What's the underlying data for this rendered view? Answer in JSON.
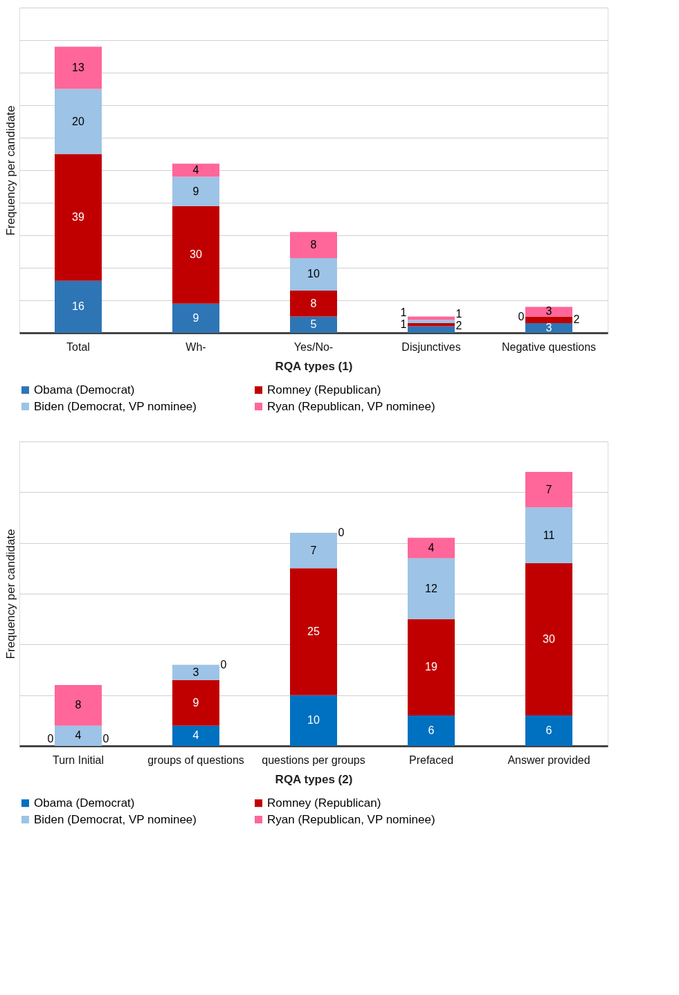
{
  "chart_data": [
    {
      "type": "bar",
      "stacked": true,
      "xlabel": "RQA types (1)",
      "ylabel": "Frequency per candidate",
      "categories": [
        "Total",
        "Wh-",
        "Yes/No-",
        "Disjunctives",
        "Negative questions"
      ],
      "series": [
        {
          "name": "Obama (Democrat)",
          "color": "#2e75b6",
          "values": [
            16,
            9,
            5,
            2,
            3
          ],
          "value_labels": [
            "16",
            "9",
            "5",
            "2",
            "3"
          ]
        },
        {
          "name": "Romney (Republican)",
          "color": "#c00000",
          "values": [
            39,
            30,
            8,
            1,
            2
          ],
          "value_labels": [
            "39",
            "30",
            "8",
            "1",
            "2"
          ]
        },
        {
          "name": "Biden (Democrat, VP nominee)",
          "color": "#9dc3e6",
          "values": [
            20,
            9,
            10,
            1,
            0
          ],
          "value_labels": [
            "20",
            "9",
            "10",
            "1",
            null
          ]
        },
        {
          "name": "Ryan (Republican, VP nominee)",
          "color": "#ff6699",
          "values": [
            13,
            4,
            8,
            1,
            3
          ],
          "value_labels": [
            "13",
            "4",
            "8",
            "1",
            "3"
          ]
        }
      ],
      "annotations": [
        {
          "text": "0",
          "x": "Negative questions",
          "y": 5
        }
      ],
      "ylim": [
        0,
        100
      ],
      "yticks": [
        {
          "value": 0,
          "label": null
        },
        {
          "value": 10,
          "label": null
        },
        {
          "value": 20,
          "label": null
        },
        {
          "value": 30,
          "label": null
        },
        {
          "value": 40,
          "label": null
        },
        {
          "value": 50,
          "label": null
        },
        {
          "value": 60,
          "label": null
        },
        {
          "value": 70,
          "label": null
        },
        {
          "value": 80,
          "label": null
        },
        {
          "value": 90,
          "label": null
        },
        {
          "value": 100,
          "label": null
        }
      ],
      "grid": "y",
      "tick_labels": "x",
      "legend": "bottom"
    },
    {
      "type": "bar",
      "stacked": true,
      "xlabel": "RQA types (2)",
      "ylabel": "Frequency per candidate",
      "categories": [
        "Turn Initial",
        "groups of questions",
        "questions per groups",
        "Prefaced",
        "Answer provided"
      ],
      "series": [
        {
          "name": "Obama (Democrat)",
          "color": "#0070c0",
          "values": [
            0,
            4,
            10,
            6,
            6
          ],
          "value_labels": [
            null,
            "4",
            "10",
            "6",
            "6"
          ]
        },
        {
          "name": "Romney (Republican)",
          "color": "#c00000",
          "values": [
            0,
            9,
            25,
            19,
            30
          ],
          "value_labels": [
            null,
            "9",
            "25",
            "19",
            "30"
          ]
        },
        {
          "name": "Biden (Democrat, VP nominee)",
          "color": "#9dc3e6",
          "values": [
            4,
            3,
            7,
            12,
            11
          ],
          "value_labels": [
            "4",
            "3",
            "7",
            "12",
            "11"
          ]
        },
        {
          "name": "Ryan (Republican, VP nominee)",
          "color": "#ff6699",
          "values": [
            8,
            0,
            0,
            4,
            7
          ],
          "value_labels": [
            "8",
            null,
            null,
            "4",
            "7"
          ]
        }
      ],
      "annotations": [
        {
          "text": "0",
          "x": "Turn Initial",
          "y": 0
        },
        {
          "text": "0",
          "x": "Turn Initial",
          "y": 0
        },
        {
          "text": "0",
          "x": "groups of questions",
          "y": 16
        },
        {
          "text": "0",
          "x": "questions per groups",
          "y": 42
        }
      ],
      "ylim": [
        0,
        60
      ],
      "yticks": [
        {
          "value": 0,
          "label": null
        },
        {
          "value": 10,
          "label": null
        },
        {
          "value": 20,
          "label": null
        },
        {
          "value": 30,
          "label": null
        },
        {
          "value": 40,
          "label": null
        },
        {
          "value": 50,
          "label": null
        },
        {
          "value": 60,
          "label": null
        }
      ],
      "grid": "y",
      "tick_labels": "x",
      "legend": "bottom"
    }
  ]
}
